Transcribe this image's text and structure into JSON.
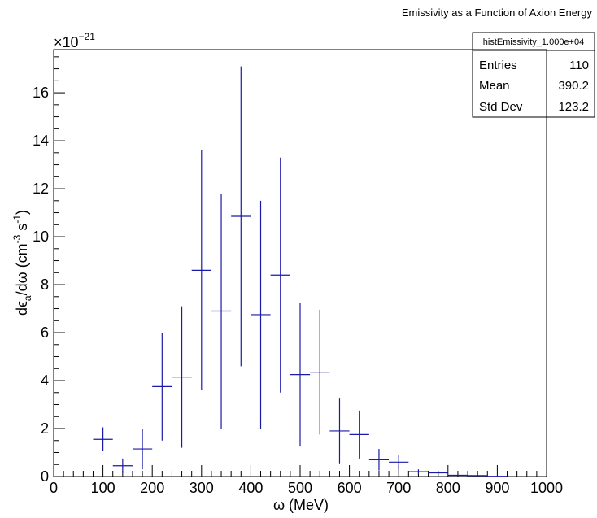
{
  "chart_data": {
    "type": "histogram",
    "title": "Emissivity as a Function of Axion Energy",
    "xlabel": "ω (MeV)",
    "ylabel": {
      "base": "dϵ",
      "sub": "a",
      "mid": "/dω (cm",
      "sup1": "-3",
      "mid2": " s",
      "sup2": "-1",
      "end": ")"
    },
    "exponent": {
      "base": "×10",
      "power": "−21"
    },
    "xlim": [
      0,
      1000
    ],
    "ylim": [
      0,
      17.8
    ],
    "x_ticks": [
      0,
      100,
      200,
      300,
      400,
      500,
      600,
      700,
      800,
      900,
      1000
    ],
    "y_ticks": [
      0,
      2,
      4,
      6,
      8,
      10,
      12,
      14,
      16
    ],
    "bin_width": 40,
    "points": [
      {
        "x": 100,
        "y": 1.55,
        "err": 0.5
      },
      {
        "x": 140,
        "y": 0.45,
        "err": 0.3
      },
      {
        "x": 180,
        "y": 1.15,
        "err": 0.85
      },
      {
        "x": 220,
        "y": 3.75,
        "err": 2.25
      },
      {
        "x": 260,
        "y": 4.15,
        "err": 2.95
      },
      {
        "x": 300,
        "y": 8.6,
        "err": 5.0
      },
      {
        "x": 340,
        "y": 6.9,
        "err": 4.9
      },
      {
        "x": 380,
        "y": 10.85,
        "err": 6.25
      },
      {
        "x": 420,
        "y": 6.75,
        "err": 4.75
      },
      {
        "x": 460,
        "y": 8.4,
        "err": 4.9
      },
      {
        "x": 500,
        "y": 4.25,
        "err": 3.0
      },
      {
        "x": 540,
        "y": 4.35,
        "err": 2.6
      },
      {
        "x": 580,
        "y": 1.9,
        "err": 1.35
      },
      {
        "x": 620,
        "y": 1.75,
        "err": 1.0
      },
      {
        "x": 660,
        "y": 0.7,
        "err": 0.45
      },
      {
        "x": 700,
        "y": 0.6,
        "err": 0.3
      },
      {
        "x": 740,
        "y": 0.2,
        "err": 0.1
      },
      {
        "x": 780,
        "y": 0.15,
        "err": 0.08
      },
      {
        "x": 820,
        "y": 0.05,
        "err": 0.03
      },
      {
        "x": 860,
        "y": 0.04,
        "err": 0.02
      },
      {
        "x": 900,
        "y": 0.01,
        "err": 0.01
      }
    ],
    "stats_box": {
      "name": "histEmissivity_1.000e+04",
      "rows": [
        {
          "label": "Entries",
          "value": "110"
        },
        {
          "label": "Mean",
          "value": "390.2"
        },
        {
          "label": "Std Dev",
          "value": "123.2"
        }
      ]
    },
    "colors": {
      "series": "#1a1aa6",
      "axis": "#000000"
    },
    "grid": false,
    "legend_position": "top-right"
  }
}
